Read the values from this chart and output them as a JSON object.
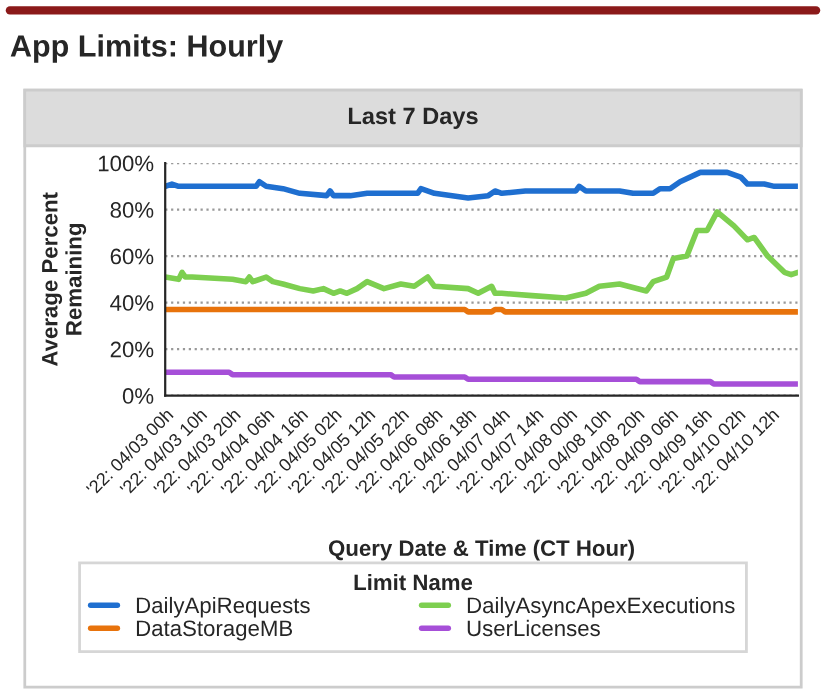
{
  "chart_data": {
    "type": "line",
    "title": "App Limits: Hourly",
    "subtitle": "Last 7 Days",
    "xlabel": "Query Date & Time (CT Hour)",
    "ylabel": "Average Percent\nRemaining",
    "legend_title": "Limit Name",
    "xlim": [
      "2022-04-03T00:00",
      "2022-04-10T20:00"
    ],
    "ylim": [
      0,
      100
    ],
    "xticks": [
      {
        "value": "2022-04-03T00:00",
        "label": "'22: 04/03 00h"
      },
      {
        "value": "2022-04-03T10:00",
        "label": "'22: 04/03 10h"
      },
      {
        "value": "2022-04-03T20:00",
        "label": "'22: 04/03 20h"
      },
      {
        "value": "2022-04-04T06:00",
        "label": "'22: 04/04 06h"
      },
      {
        "value": "2022-04-04T16:00",
        "label": "'22: 04/04 16h"
      },
      {
        "value": "2022-04-05T02:00",
        "label": "'22: 04/05 02h"
      },
      {
        "value": "2022-04-05T12:00",
        "label": "'22: 04/05 12h"
      },
      {
        "value": "2022-04-05T22:00",
        "label": "'22: 04/05 22h"
      },
      {
        "value": "2022-04-06T08:00",
        "label": "'22: 04/06 08h"
      },
      {
        "value": "2022-04-06T18:00",
        "label": "'22: 04/06 18h"
      },
      {
        "value": "2022-04-07T04:00",
        "label": "'22: 04/07 04h"
      },
      {
        "value": "2022-04-07T14:00",
        "label": "'22: 04/07 14h"
      },
      {
        "value": "2022-04-08T00:00",
        "label": "'22: 04/08 00h"
      },
      {
        "value": "2022-04-08T10:00",
        "label": "'22: 04/08 10h"
      },
      {
        "value": "2022-04-08T20:00",
        "label": "'22: 04/08 20h"
      },
      {
        "value": "2022-04-09T06:00",
        "label": "'22: 04/09 06h"
      },
      {
        "value": "2022-04-09T16:00",
        "label": "'22: 04/09 16h"
      },
      {
        "value": "2022-04-10T02:00",
        "label": "'22: 04/10 02h"
      },
      {
        "value": "2022-04-10T12:00",
        "label": "'22: 04/10 12h"
      }
    ],
    "yticks": [
      {
        "value": 0,
        "label": "0%"
      },
      {
        "value": 20,
        "label": "20%"
      },
      {
        "value": 40,
        "label": "40%"
      },
      {
        "value": 60,
        "label": "60%"
      },
      {
        "value": 80,
        "label": "80%"
      },
      {
        "value": 100,
        "label": "100%"
      }
    ],
    "grid": "y",
    "legend": "bottom",
    "marker": "none",
    "line_style": "solid",
    "series": [
      {
        "name": "DailyApiRequests",
        "color": "#1f6fd0",
        "x": [
          "2022-04-03T00:00",
          "2022-04-03T02:00",
          "2022-04-03T04:00",
          "2022-04-03T10:00",
          "2022-04-03T20:00",
          "2022-04-04T03:00",
          "2022-04-04T04:00",
          "2022-04-04T06:00",
          "2022-04-04T11:00",
          "2022-04-04T16:00",
          "2022-04-05T00:00",
          "2022-04-05T01:00",
          "2022-04-05T02:00",
          "2022-04-05T07:00",
          "2022-04-05T12:00",
          "2022-04-05T22:00",
          "2022-04-06T03:00",
          "2022-04-06T04:00",
          "2022-04-06T08:00",
          "2022-04-06T18:00",
          "2022-04-07T00:00",
          "2022-04-07T02:00",
          "2022-04-07T04:00",
          "2022-04-07T11:00",
          "2022-04-07T19:00",
          "2022-04-08T02:00",
          "2022-04-08T03:00",
          "2022-04-08T05:00",
          "2022-04-08T15:00",
          "2022-04-08T19:00",
          "2022-04-09T01:00",
          "2022-04-09T03:00",
          "2022-04-09T06:00",
          "2022-04-09T09:00",
          "2022-04-09T15:00",
          "2022-04-09T19:00",
          "2022-04-09T23:00",
          "2022-04-10T03:00",
          "2022-04-10T05:00",
          "2022-04-10T10:00",
          "2022-04-10T13:00",
          "2022-04-10T20:00"
        ],
        "values": [
          90,
          91,
          90,
          90,
          90,
          90,
          92,
          90,
          89,
          87,
          86,
          88,
          86,
          86,
          87,
          87,
          87,
          89,
          87,
          85,
          86,
          88,
          87,
          88,
          88,
          88,
          90,
          88,
          88,
          87,
          87,
          89,
          89,
          92,
          96,
          96,
          96,
          94,
          91,
          91,
          90,
          90
        ]
      },
      {
        "name": "DataStorageMB",
        "color": "#e8730c",
        "x": [
          "2022-04-03T00:00",
          "2022-04-04T06:00",
          "2022-04-05T12:00",
          "2022-04-06T17:00",
          "2022-04-06T18:00",
          "2022-04-07T01:00",
          "2022-04-07T02:00",
          "2022-04-07T04:00",
          "2022-04-07T05:00",
          "2022-04-08T10:00",
          "2022-04-09T16:00",
          "2022-04-10T20:00"
        ],
        "values": [
          37,
          37,
          37,
          37,
          36,
          36,
          37,
          37,
          36,
          36,
          36,
          36
        ]
      },
      {
        "name": "DailyAsyncApexExecutions",
        "color": "#7dcf50",
        "x": [
          "2022-04-03T00:00",
          "2022-04-03T04:00",
          "2022-04-03T05:00",
          "2022-04-03T06:00",
          "2022-04-03T08:00",
          "2022-04-03T20:00",
          "2022-04-04T00:00",
          "2022-04-04T01:00",
          "2022-04-04T02:00",
          "2022-04-04T06:00",
          "2022-04-04T08:00",
          "2022-04-04T11:00",
          "2022-04-04T16:00",
          "2022-04-04T20:00",
          "2022-04-04T23:00",
          "2022-04-05T02:00",
          "2022-04-05T04:00",
          "2022-04-05T06:00",
          "2022-04-05T09:00",
          "2022-04-05T12:00",
          "2022-04-05T17:00",
          "2022-04-05T22:00",
          "2022-04-06T02:00",
          "2022-04-06T06:00",
          "2022-04-06T08:00",
          "2022-04-06T18:00",
          "2022-04-06T21:00",
          "2022-04-07T01:00",
          "2022-04-07T02:00",
          "2022-04-07T04:00",
          "2022-04-07T13:00",
          "2022-04-07T23:00",
          "2022-04-08T05:00",
          "2022-04-08T09:00",
          "2022-04-08T15:00",
          "2022-04-08T23:00",
          "2022-04-09T01:00",
          "2022-04-09T05:00",
          "2022-04-09T07:00",
          "2022-04-09T11:00",
          "2022-04-09T14:00",
          "2022-04-09T17:00",
          "2022-04-09T20:00",
          "2022-04-10T01:00",
          "2022-04-10T05:00",
          "2022-04-10T07:00",
          "2022-04-10T11:00",
          "2022-04-10T16:00",
          "2022-04-10T18:00",
          "2022-04-10T20:00"
        ],
        "values": [
          51,
          50,
          53,
          51,
          51,
          50,
          49,
          51,
          49,
          51,
          49,
          48,
          46,
          45,
          46,
          44,
          45,
          44,
          46,
          49,
          46,
          48,
          47,
          51,
          47,
          46,
          44,
          47,
          44,
          44,
          43,
          42,
          44,
          47,
          48,
          45,
          49,
          51,
          59,
          60,
          71,
          71,
          79,
          73,
          67,
          68,
          60,
          53,
          52,
          53
        ]
      },
      {
        "name": "UserLicenses",
        "color": "#a64fd8",
        "x": [
          "2022-04-03T00:00",
          "2022-04-03T19:00",
          "2022-04-03T20:00",
          "2022-04-05T19:00",
          "2022-04-05T20:00",
          "2022-04-06T17:00",
          "2022-04-06T18:00",
          "2022-04-08T20:00",
          "2022-04-08T21:00",
          "2022-04-09T18:00",
          "2022-04-09T19:00",
          "2022-04-10T20:00"
        ],
        "values": [
          10,
          10,
          9,
          9,
          8,
          8,
          7,
          7,
          6,
          6,
          5,
          5
        ]
      }
    ]
  }
}
